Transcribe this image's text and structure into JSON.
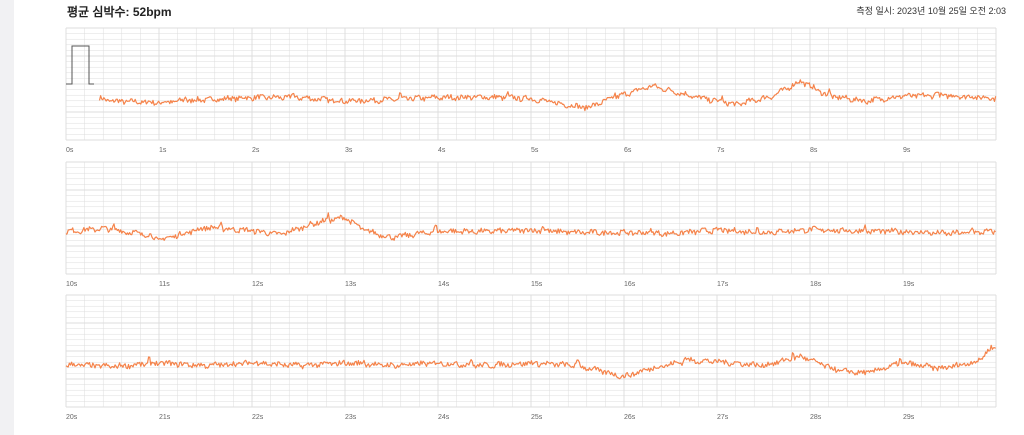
{
  "header": {
    "title": "평균 심박수: 52bpm",
    "timestamp": "측정 일시: 2023년 10월 25일 오전 2:03"
  },
  "chart_data": {
    "type": "line",
    "title": "평균 심박수: 52bpm",
    "series_color": "#f5834a",
    "grid_color": "#dcdcdc",
    "calibration_color": "#555555",
    "strips": [
      {
        "start_s": 0,
        "tick_labels": [
          "0s",
          "1s",
          "2s",
          "3s",
          "4s",
          "5s",
          "6s",
          "7s",
          "8s",
          "9s"
        ]
      },
      {
        "start_s": 10,
        "tick_labels": [
          "10s",
          "11s",
          "12s",
          "13s",
          "14s",
          "15s",
          "16s",
          "17s",
          "18s",
          "19s"
        ]
      },
      {
        "start_s": 20,
        "tick_labels": [
          "20s",
          "21s",
          "22s",
          "23s",
          "24s",
          "25s",
          "26s",
          "27s",
          "28s",
          "29s"
        ]
      }
    ],
    "trace_start_s": 0.36,
    "trace_keypoints": [
      [
        0.36,
        0.0
      ],
      [
        0.5,
        -0.05
      ],
      [
        1.0,
        -0.08
      ],
      [
        1.4,
        -0.03
      ],
      [
        2.0,
        0.02
      ],
      [
        2.5,
        0.02
      ],
      [
        3.0,
        -0.05
      ],
      [
        3.5,
        -0.02
      ],
      [
        4.0,
        0.02
      ],
      [
        4.5,
        0.03
      ],
      [
        5.0,
        0.0
      ],
      [
        5.3,
        -0.1
      ],
      [
        5.6,
        -0.18
      ],
      [
        6.0,
        0.08
      ],
      [
        6.3,
        0.25
      ],
      [
        6.8,
        0.02
      ],
      [
        7.2,
        -0.12
      ],
      [
        7.6,
        0.05
      ],
      [
        7.9,
        0.35
      ],
      [
        8.2,
        0.05
      ],
      [
        8.6,
        -0.05
      ],
      [
        9.0,
        0.05
      ],
      [
        9.5,
        0.06
      ],
      [
        9.99,
        0.01
      ],
      [
        10.0,
        0.02
      ],
      [
        10.4,
        0.08
      ],
      [
        10.9,
        -0.05
      ],
      [
        11.0,
        -0.15
      ],
      [
        11.5,
        0.1
      ],
      [
        12.0,
        0.04
      ],
      [
        12.3,
        -0.04
      ],
      [
        12.7,
        0.2
      ],
      [
        13.0,
        0.3
      ],
      [
        13.2,
        0.05
      ],
      [
        13.5,
        -0.1
      ],
      [
        14.0,
        0.03
      ],
      [
        14.5,
        0.02
      ],
      [
        15.0,
        0.05
      ],
      [
        15.5,
        0.0
      ],
      [
        16.0,
        0.0
      ],
      [
        16.5,
        -0.02
      ],
      [
        17.0,
        0.05
      ],
      [
        17.5,
        0.0
      ],
      [
        18.0,
        0.06
      ],
      [
        18.5,
        0.03
      ],
      [
        19.0,
        0.02
      ],
      [
        19.5,
        -0.02
      ],
      [
        19.99,
        0.02
      ],
      [
        20.0,
        0.02
      ],
      [
        20.5,
        -0.02
      ],
      [
        21.0,
        0.05
      ],
      [
        21.5,
        0.0
      ],
      [
        22.0,
        0.05
      ],
      [
        22.5,
        0.0
      ],
      [
        23.0,
        0.05
      ],
      [
        23.5,
        0.0
      ],
      [
        24.0,
        0.05
      ],
      [
        24.5,
        0.0
      ],
      [
        25.0,
        0.05
      ],
      [
        25.5,
        0.0
      ],
      [
        26.0,
        -0.22
      ],
      [
        26.3,
        -0.05
      ],
      [
        26.7,
        0.1
      ],
      [
        27.0,
        0.08
      ],
      [
        27.5,
        0.0
      ],
      [
        27.9,
        0.18
      ],
      [
        28.3,
        -0.1
      ],
      [
        28.6,
        -0.15
      ],
      [
        29.0,
        0.05
      ],
      [
        29.4,
        -0.06
      ],
      [
        29.8,
        0.08
      ],
      [
        29.95,
        0.35
      ]
    ],
    "ylim": [
      -1,
      1
    ]
  }
}
